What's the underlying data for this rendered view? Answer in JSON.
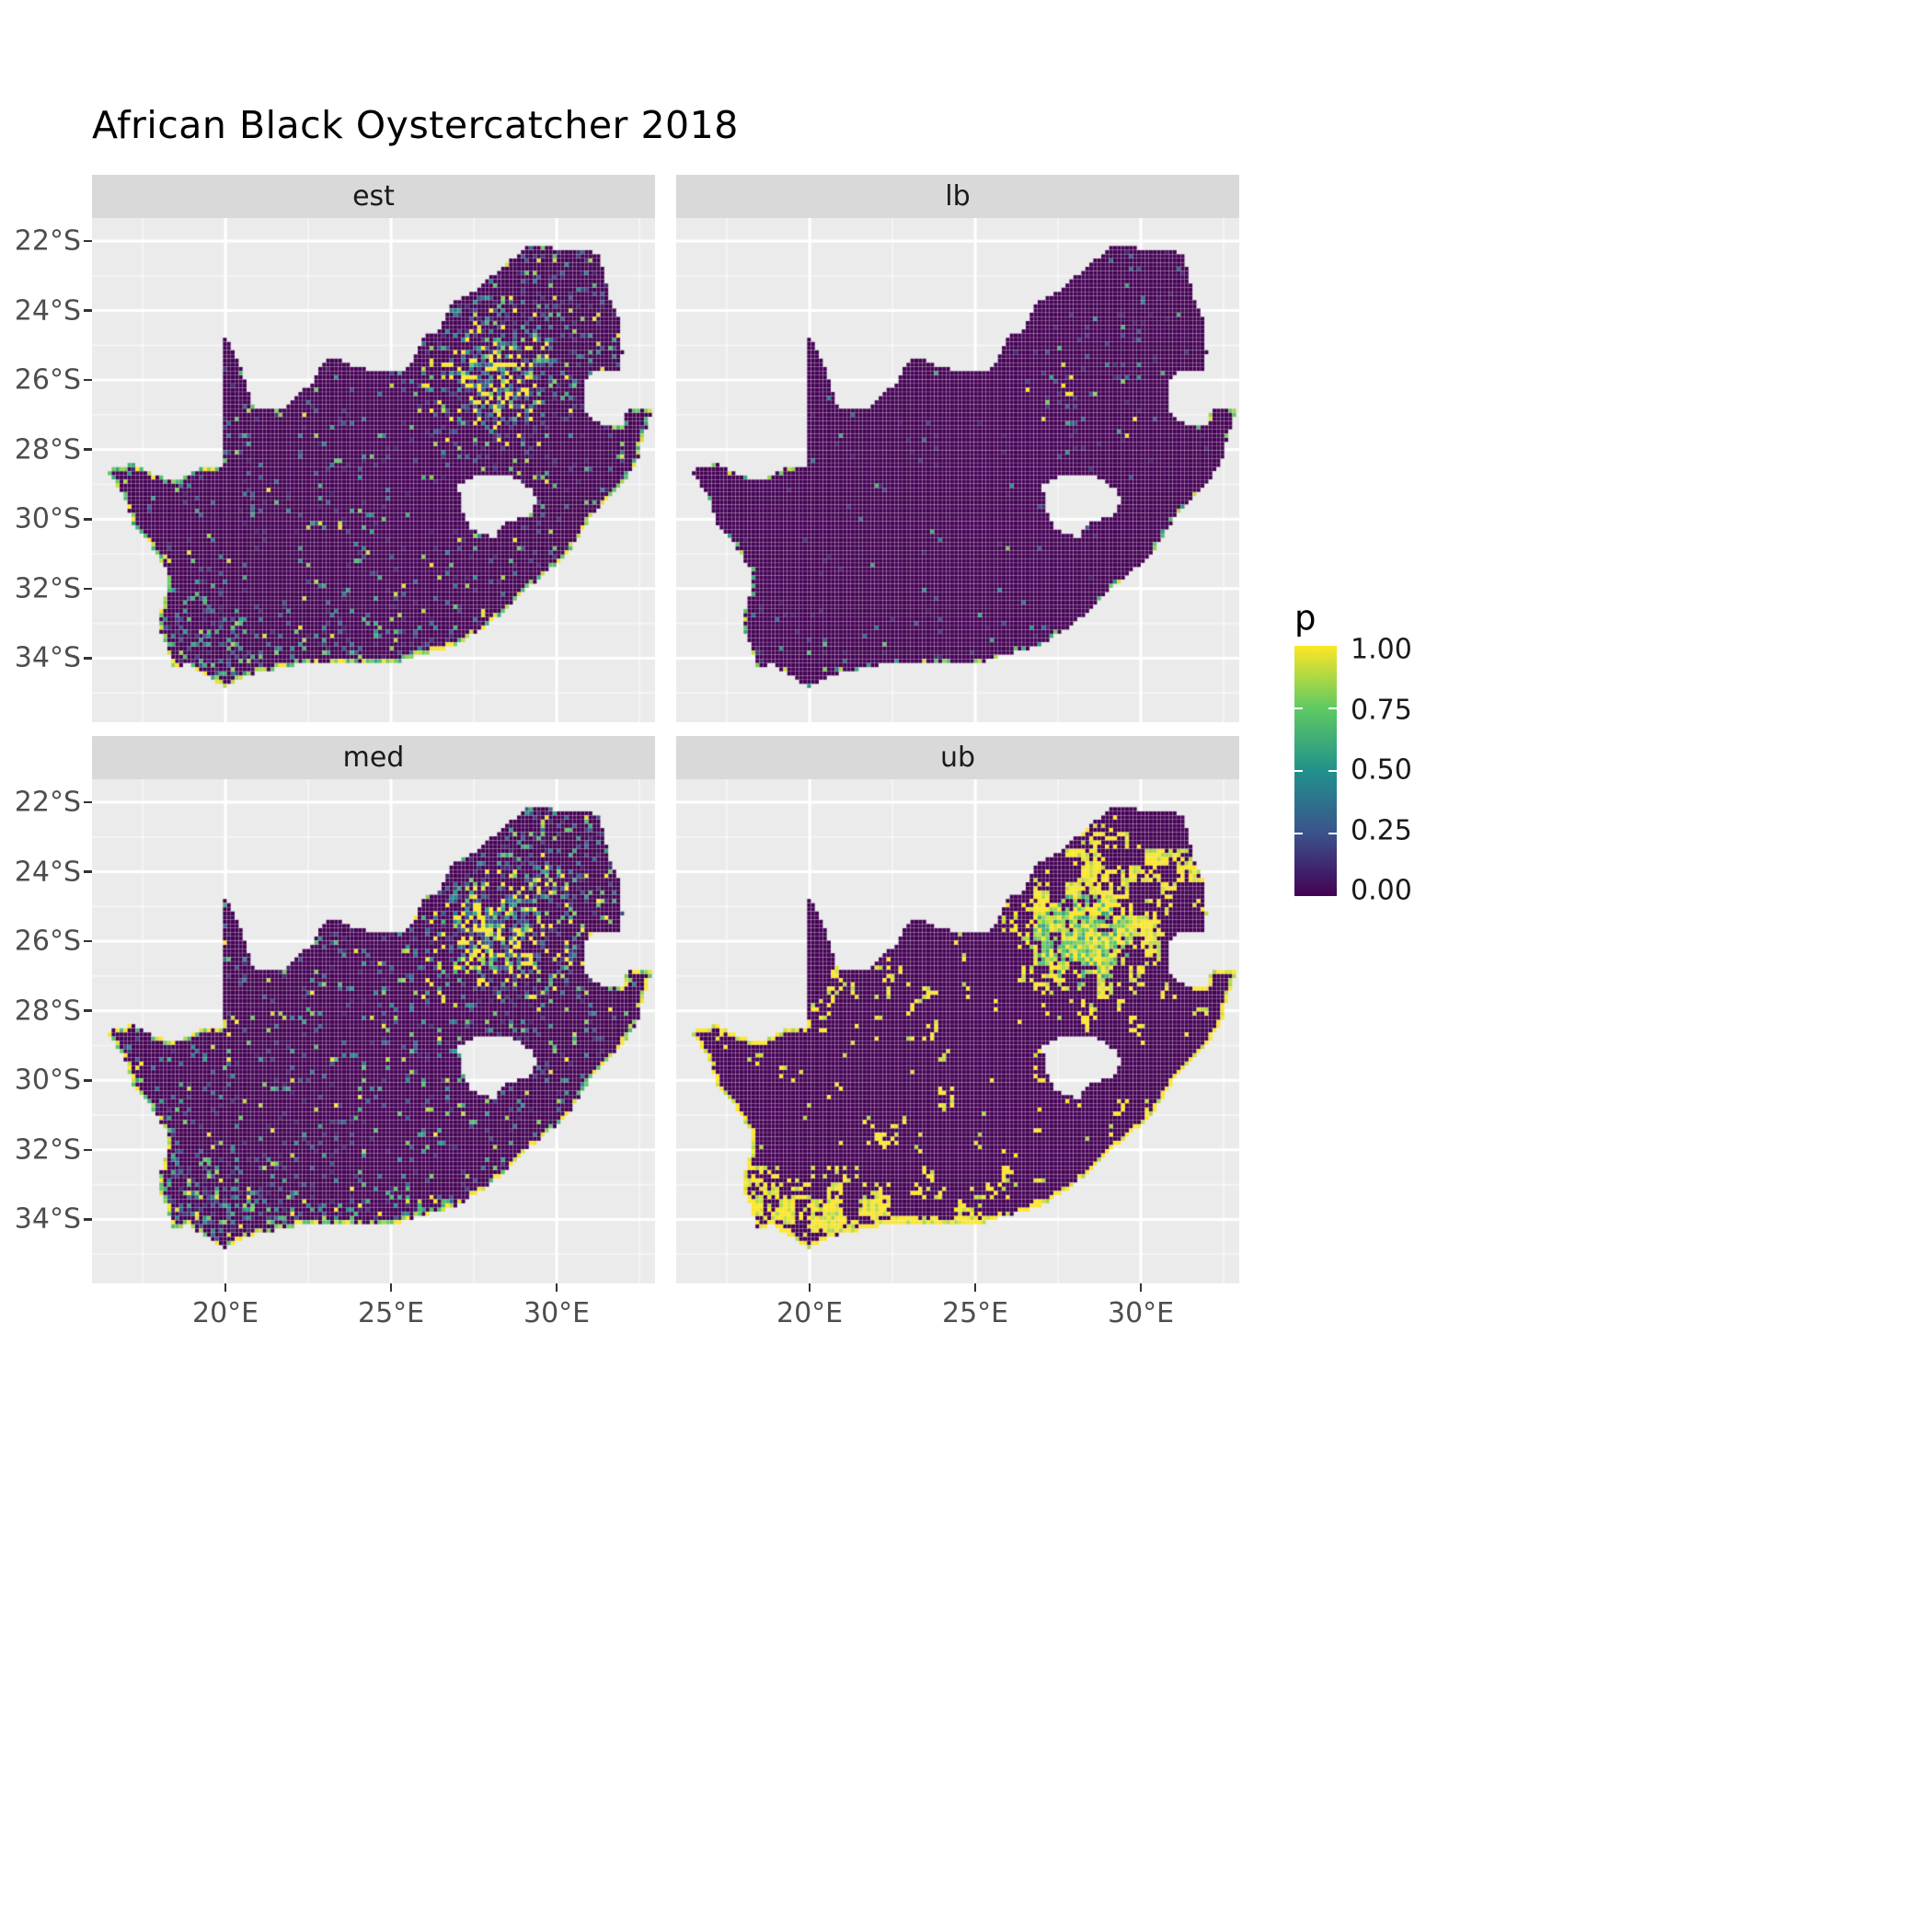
{
  "page": {
    "background": "#ffffff"
  },
  "chart_data": {
    "type": "heatmap",
    "title": "African Black Oystercatcher 2018",
    "subtitle": "",
    "region": "South Africa",
    "facets": [
      {
        "label": "est",
        "render": {
          "seed": 1,
          "base": 0.07,
          "cluster": 0.55,
          "ne2": 0.16,
          "sw": 0.16,
          "south": 0.2,
          "coast": 0.75,
          "blob": false,
          "gamma": 2.2,
          "gain": 1.3,
          "core": false,
          "floor": 0,
          "coastv": 0.8,
          "bright": 1.0
        }
      },
      {
        "label": "lb",
        "render": {
          "seed": 2,
          "base": 0.012,
          "cluster": 0.1,
          "ne2": 0.02,
          "sw": 0.02,
          "south": 0.05,
          "coast": 0.3,
          "blob": false,
          "gamma": 2.8,
          "gain": 1.0,
          "core": false,
          "floor": 0,
          "coastv": 0.85,
          "bright": 0.85
        }
      },
      {
        "label": "med",
        "render": {
          "seed": 3,
          "base": 0.09,
          "cluster": 0.6,
          "ne2": 0.2,
          "sw": 0.18,
          "south": 0.24,
          "coast": 0.8,
          "blob": false,
          "gamma": 2.0,
          "gain": 1.3,
          "core": false,
          "floor": 0,
          "coastv": 0.85,
          "bright": 1.05
        }
      },
      {
        "label": "ub",
        "render": {
          "seed": 4,
          "base": 0.16,
          "cluster": 0.65,
          "ne2": 0.3,
          "sw": 0.22,
          "south": 0.3,
          "coast": 0.85,
          "blob": true,
          "gamma": 1.2,
          "gain": 0.8,
          "core": true,
          "floor": 0.88,
          "coastv": 0.95,
          "bright": 1.15
        }
      }
    ],
    "x": {
      "label": "",
      "ticks": [
        {
          "label": "20°E",
          "value": 20
        },
        {
          "label": "25°E",
          "value": 25
        },
        {
          "label": "30°E",
          "value": 30
        }
      ],
      "minor": [
        17.5,
        22.5,
        27.5,
        32.5
      ],
      "range": [
        15.97,
        32.97
      ]
    },
    "y": {
      "label": "",
      "ticks": [
        {
          "label": "22°S",
          "value": 22
        },
        {
          "label": "24°S",
          "value": 24
        },
        {
          "label": "26°S",
          "value": 26
        },
        {
          "label": "28°S",
          "value": 28
        },
        {
          "label": "30°S",
          "value": 30
        },
        {
          "label": "32°S",
          "value": 32
        },
        {
          "label": "34°S",
          "value": 34
        }
      ],
      "minor": [
        23,
        25,
        27,
        29,
        31,
        33,
        35
      ],
      "range": [
        21.34,
        35.84
      ]
    },
    "legend": {
      "title": "p",
      "labels": [
        {
          "label": "1.00",
          "value": 1
        },
        {
          "label": "0.75",
          "value": 0.75
        },
        {
          "label": "0.50",
          "value": 0.5
        },
        {
          "label": "0.25",
          "value": 0.25
        },
        {
          "label": "0.00",
          "value": 0
        }
      ]
    },
    "color_scale": {
      "name": "viridis",
      "stops": [
        [
          0,
          "#440154"
        ],
        [
          0.25,
          "#3b528b"
        ],
        [
          0.5,
          "#21918c"
        ],
        [
          0.75,
          "#5ec962"
        ],
        [
          1,
          "#fde725"
        ]
      ]
    },
    "panel": {
      "background": "#ebebeb",
      "grid_major": "#ffffff",
      "strip_background": "#d9d9d9",
      "base_value_color": "#440154"
    },
    "map": {
      "south_africa": [
        [
          16.45,
          28.6
        ],
        [
          17.2,
          28.4
        ],
        [
          17.9,
          28.78
        ],
        [
          18.6,
          28.85
        ],
        [
          19.3,
          28.52
        ],
        [
          19.98,
          28.43
        ],
        [
          19.98,
          24.77
        ],
        [
          20.35,
          25.35
        ],
        [
          20.65,
          26.15
        ],
        [
          20.85,
          26.85
        ],
        [
          21.7,
          26.85
        ],
        [
          22.2,
          26.35
        ],
        [
          22.65,
          26.1
        ],
        [
          22.85,
          25.6
        ],
        [
          23.25,
          25.3
        ],
        [
          23.95,
          25.62
        ],
        [
          24.75,
          25.78
        ],
        [
          25.4,
          25.73
        ],
        [
          25.65,
          25.48
        ],
        [
          26.0,
          24.7
        ],
        [
          26.45,
          24.6
        ],
        [
          26.85,
          23.75
        ],
        [
          27.55,
          23.4
        ],
        [
          28.2,
          22.9
        ],
        [
          29.05,
          22.2
        ],
        [
          29.9,
          22.2
        ],
        [
          30.65,
          22.3
        ],
        [
          31.3,
          22.33
        ],
        [
          31.55,
          23.5
        ],
        [
          31.87,
          24.25
        ],
        [
          31.98,
          25.2
        ],
        [
          31.95,
          25.68
        ],
        [
          31.1,
          25.75
        ],
        [
          30.79,
          26.15
        ],
        [
          30.8,
          26.85
        ],
        [
          31.05,
          27.1
        ],
        [
          31.4,
          27.3
        ],
        [
          31.97,
          27.31
        ],
        [
          32.13,
          26.85
        ],
        [
          32.89,
          26.86
        ],
        [
          32.4,
          28.4
        ],
        [
          32.05,
          28.9
        ],
        [
          31.05,
          29.9
        ],
        [
          30.3,
          31.05
        ],
        [
          29.55,
          31.65
        ],
        [
          29.1,
          32.0
        ],
        [
          28.5,
          32.6
        ],
        [
          27.9,
          33.05
        ],
        [
          26.9,
          33.65
        ],
        [
          25.65,
          33.98
        ],
        [
          24.8,
          34.2
        ],
        [
          23.4,
          34.1
        ],
        [
          22.1,
          34.2
        ],
        [
          20.8,
          34.45
        ],
        [
          20.0,
          34.82
        ],
        [
          19.3,
          34.45
        ],
        [
          18.8,
          34.1
        ],
        [
          18.45,
          34.35
        ],
        [
          18.3,
          33.9
        ],
        [
          17.95,
          33.0
        ],
        [
          18.0,
          32.7
        ],
        [
          18.3,
          32.0
        ],
        [
          18.25,
          31.5
        ],
        [
          17.7,
          30.7
        ],
        [
          17.25,
          30.2
        ],
        [
          16.95,
          29.4
        ]
      ],
      "lesotho_hole": [
        [
          27.05,
          29.0
        ],
        [
          27.65,
          28.7
        ],
        [
          28.55,
          28.72
        ],
        [
          29.25,
          29.15
        ],
        [
          29.4,
          29.5
        ],
        [
          29.15,
          29.9
        ],
        [
          28.45,
          30.1
        ],
        [
          28.1,
          30.55
        ],
        [
          27.45,
          30.32
        ],
        [
          27.08,
          29.7
        ]
      ]
    }
  }
}
